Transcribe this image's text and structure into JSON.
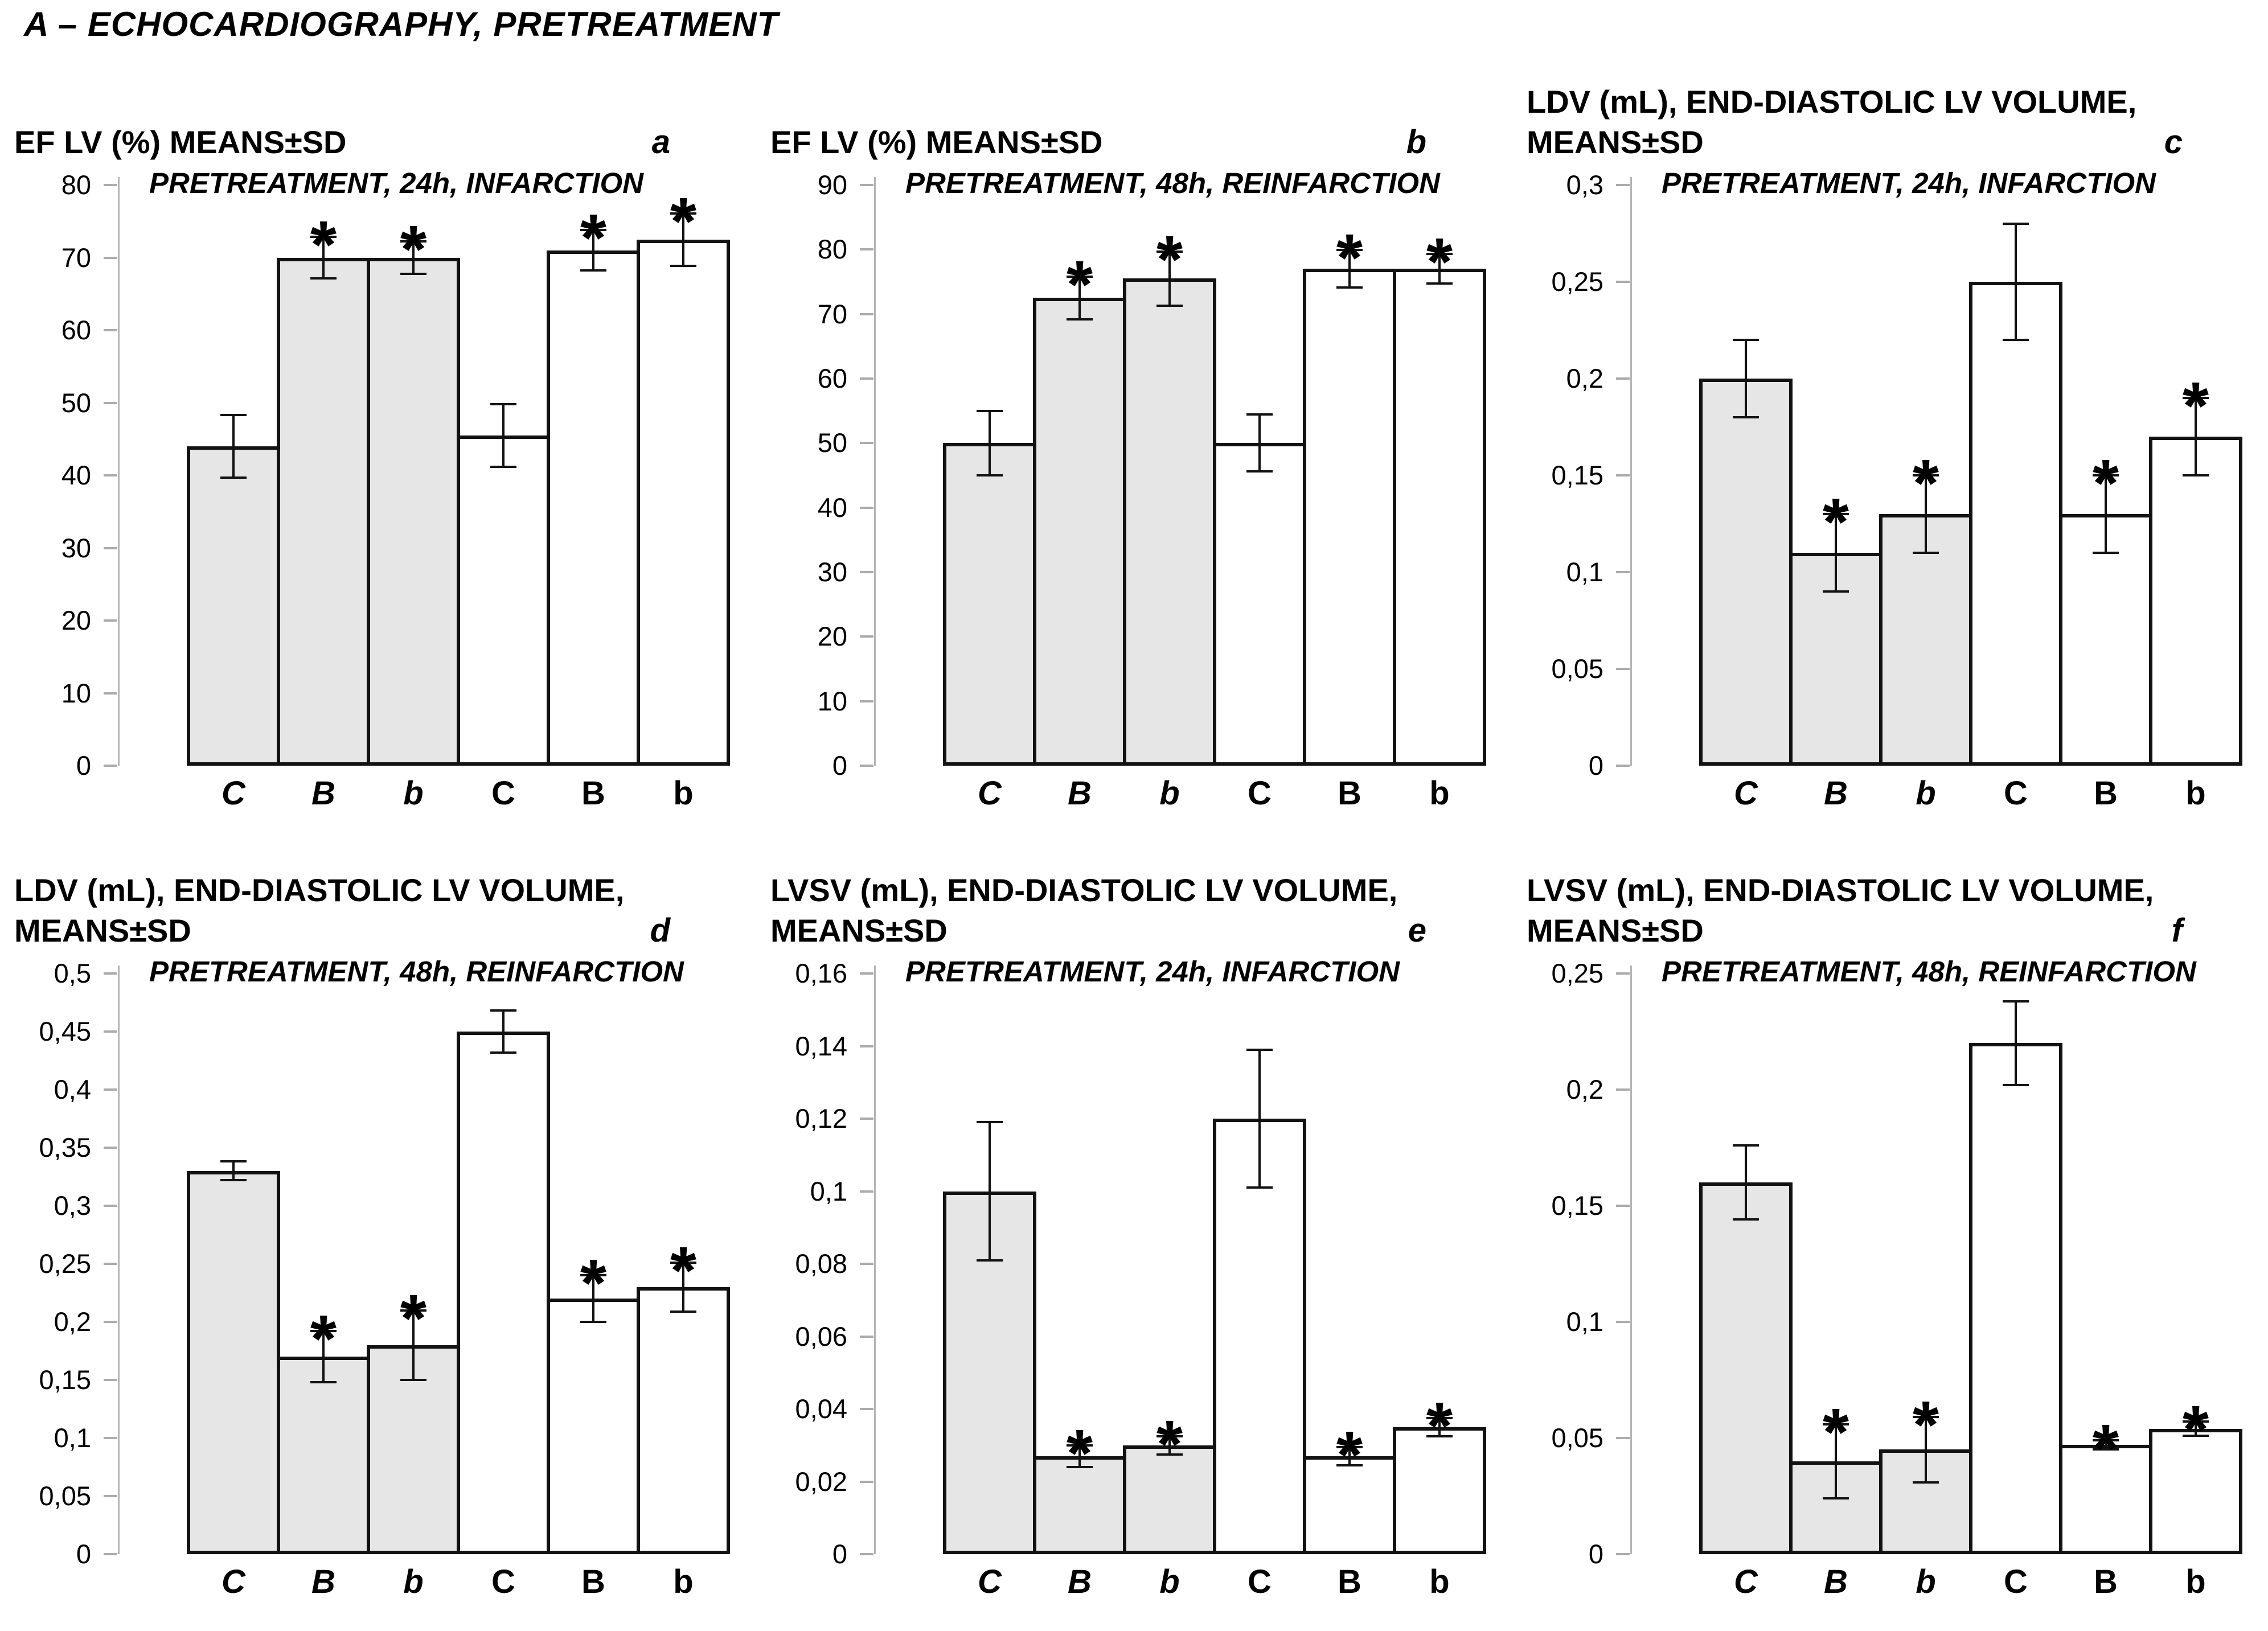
{
  "figure_title": "A – ECHOCARDIOGRAPHY, PRETREATMENT",
  "sig_symbol": "*",
  "colors": {
    "bar_gray": "#e6e6e6",
    "bar_white": "#ffffff",
    "bar_border": "#121212",
    "axis_line": "#b5b5b5",
    "tick_mark": "#ababab",
    "text": "#000000"
  },
  "chart_data": [
    {
      "panel": "a",
      "type": "bar",
      "title_lines": [
        "EF LV (%) MEANS±SD"
      ],
      "subtitle": "PRETREATMENT, 24h, INFARCTION",
      "ylabel": "EF LV (%)",
      "ylim": [
        0,
        80
      ],
      "ytick_values": [
        0,
        10,
        20,
        30,
        40,
        50,
        60,
        70,
        80
      ],
      "ytick_labels": [
        "0",
        "10",
        "20",
        "30",
        "40",
        "50",
        "60",
        "70",
        "80"
      ],
      "categories": [
        "C",
        "B",
        "b",
        "C",
        "B",
        "b"
      ],
      "categories_italic": [
        true,
        true,
        true,
        false,
        false,
        false
      ],
      "values": [
        44,
        70,
        70,
        45.5,
        71,
        72.5
      ],
      "errors": [
        4.3,
        2.9,
        2.2,
        4.3,
        2.8,
        3.6
      ],
      "significant": [
        false,
        true,
        true,
        false,
        true,
        true
      ],
      "fills": [
        "gray",
        "gray",
        "gray",
        "white",
        "white",
        "white"
      ]
    },
    {
      "panel": "b",
      "type": "bar",
      "title_lines": [
        "EF LV (%) MEANS±SD"
      ],
      "subtitle": "PRETREATMENT, 48h, REINFARCTION",
      "ylabel": "EF LV (%)",
      "ylim": [
        0,
        90
      ],
      "ytick_values": [
        0,
        10,
        20,
        30,
        40,
        50,
        60,
        70,
        80,
        90
      ],
      "ytick_labels": [
        "0",
        "10",
        "20",
        "30",
        "40",
        "50",
        "60",
        "70",
        "80",
        "90"
      ],
      "categories": [
        "C",
        "B",
        "b",
        "C",
        "B",
        "b"
      ],
      "categories_italic": [
        true,
        true,
        true,
        false,
        false,
        false
      ],
      "values": [
        50,
        72.5,
        75.5,
        50,
        77,
        77
      ],
      "errors": [
        5,
        3.3,
        4.2,
        4.4,
        2.9,
        2.3
      ],
      "significant": [
        false,
        true,
        true,
        false,
        true,
        true
      ],
      "fills": [
        "gray",
        "gray",
        "gray",
        "white",
        "white",
        "white"
      ]
    },
    {
      "panel": "c",
      "type": "bar",
      "title_lines": [
        "LDV (mL), END-DIASTOLIC LV VOLUME,",
        "MEANS±SD"
      ],
      "subtitle": "PRETREATMENT, 24h, INFARCTION",
      "ylabel": "LDV (mL)",
      "ylim": [
        0,
        0.3
      ],
      "ytick_values": [
        0,
        0.05,
        0.1,
        0.15,
        0.2,
        0.25,
        0.3
      ],
      "ytick_labels": [
        "0",
        "0,05",
        "0,1",
        "0,15",
        "0,2",
        "0,25",
        "0,3"
      ],
      "categories": [
        "C",
        "B",
        "b",
        "C",
        "B",
        "b"
      ],
      "categories_italic": [
        true,
        true,
        true,
        false,
        false,
        false
      ],
      "values": [
        0.2,
        0.11,
        0.13,
        0.25,
        0.13,
        0.17
      ],
      "errors": [
        0.02,
        0.02,
        0.02,
        0.03,
        0.02,
        0.02
      ],
      "significant": [
        false,
        true,
        true,
        false,
        true,
        true
      ],
      "fills": [
        "gray",
        "gray",
        "gray",
        "white",
        "white",
        "white"
      ]
    },
    {
      "panel": "d",
      "type": "bar",
      "title_lines": [
        "LDV (mL), END-DIASTOLIC LV VOLUME,",
        "MEANS±SD"
      ],
      "subtitle": "PRETREATMENT, 48h, REINFARCTION",
      "ylabel": "LDV (mL)",
      "ylim": [
        0,
        0.5
      ],
      "ytick_values": [
        0,
        0.05,
        0.1,
        0.15,
        0.2,
        0.25,
        0.3,
        0.35,
        0.4,
        0.45,
        0.5
      ],
      "ytick_labels": [
        "0",
        "0,05",
        "0,1",
        "0,15",
        "0,2",
        "0,25",
        "0,3",
        "0,35",
        "0,4",
        "0,45",
        "0,5"
      ],
      "categories": [
        "C",
        "B",
        "b",
        "C",
        "B",
        "b"
      ],
      "categories_italic": [
        true,
        true,
        true,
        false,
        false,
        false
      ],
      "values": [
        0.33,
        0.17,
        0.18,
        0.45,
        0.22,
        0.23
      ],
      "errors": [
        0.008,
        0.022,
        0.03,
        0.018,
        0.02,
        0.021
      ],
      "significant": [
        false,
        true,
        true,
        false,
        true,
        true
      ],
      "fills": [
        "gray",
        "gray",
        "gray",
        "white",
        "white",
        "white"
      ]
    },
    {
      "panel": "e",
      "type": "bar",
      "title_lines": [
        "LVSV (mL), END-DIASTOLIC LV VOLUME,",
        "MEANS±SD"
      ],
      "subtitle": "PRETREATMENT, 24h, INFARCTION",
      "ylabel": "LVSV (mL)",
      "ylim": [
        0,
        0.16
      ],
      "ytick_values": [
        0,
        0.02,
        0.04,
        0.06,
        0.08,
        0.1,
        0.12,
        0.14,
        0.16
      ],
      "ytick_labels": [
        "0",
        "0,02",
        "0,04",
        "0,06",
        "0,08",
        "0,1",
        "0,12",
        "0,14",
        "0,16"
      ],
      "categories": [
        "C",
        "B",
        "b",
        "C",
        "B",
        "b"
      ],
      "categories_italic": [
        true,
        true,
        true,
        false,
        false,
        false
      ],
      "values": [
        0.1,
        0.027,
        0.03,
        0.12,
        0.027,
        0.035
      ],
      "errors": [
        0.019,
        0.003,
        0.0025,
        0.019,
        0.0025,
        0.0025
      ],
      "significant": [
        false,
        true,
        true,
        false,
        true,
        true
      ],
      "fills": [
        "gray",
        "gray",
        "gray",
        "white",
        "white",
        "white"
      ]
    },
    {
      "panel": "f",
      "type": "bar",
      "title_lines": [
        "LVSV (mL), END-DIASTOLIC LV VOLUME,",
        "MEANS±SD"
      ],
      "subtitle": "PRETREATMENT, 48h, REINFARCTION",
      "ylabel": "LVSV (mL)",
      "ylim": [
        0,
        0.25
      ],
      "ytick_values": [
        0,
        0.05,
        0.1,
        0.15,
        0.2,
        0.25
      ],
      "ytick_labels": [
        "0",
        "0,05",
        "0,1",
        "0,15",
        "0,2",
        "0,25"
      ],
      "categories": [
        "C",
        "B",
        "b",
        "C",
        "B",
        "b"
      ],
      "categories_italic": [
        true,
        true,
        true,
        false,
        false,
        false
      ],
      "values": [
        0.16,
        0.04,
        0.045,
        0.22,
        0.047,
        0.054
      ],
      "errors": [
        0.016,
        0.016,
        0.014,
        0.018,
        0.002,
        0.003
      ],
      "significant": [
        false,
        true,
        true,
        false,
        true,
        true
      ],
      "fills": [
        "gray",
        "gray",
        "gray",
        "white",
        "white",
        "white"
      ]
    }
  ]
}
